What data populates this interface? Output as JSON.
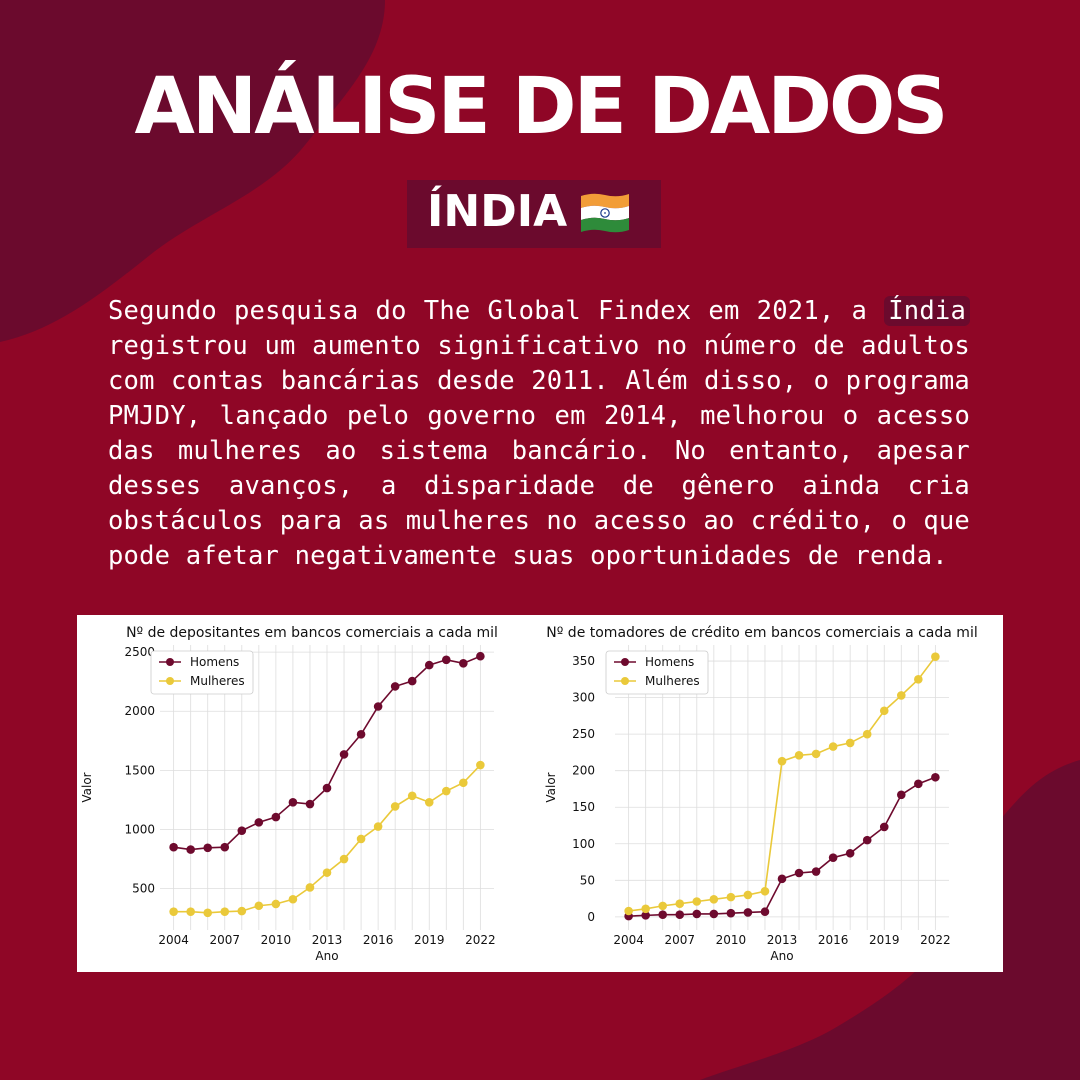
{
  "header": {
    "title": "ANÁLISE DE DADOS",
    "country": "ÍNDIA"
  },
  "body_text": {
    "before": "Segundo pesquisa do The Global Findex em 2021, a ",
    "highlight": "Índia",
    "after": " registrou um aumento significativo no número de adultos com contas bancárias desde 2011. Além disso, o programa PMJDY, lançado pelo governo em 2014, melhorou o acesso das mulheres ao sistema bancário. No entanto, apesar desses avanços, a disparidade de gênero ainda cria obstáculos para as mulheres no acesso ao crédito, o que pode afetar negativamente suas oportunidades de renda."
  },
  "colors": {
    "background": "#8f0626",
    "dark": "#6b0a2d",
    "homens": "#6e0a2e",
    "mulheres": "#eac93a"
  },
  "chart_data": [
    {
      "type": "line",
      "title": "Nº de depositantes em bancos comerciais a cada mil",
      "xlabel": "Ano",
      "ylabel": "Valor",
      "x": [
        2004,
        2005,
        2006,
        2007,
        2008,
        2009,
        2010,
        2011,
        2012,
        2013,
        2014,
        2015,
        2016,
        2017,
        2018,
        2019,
        2020,
        2021,
        2022
      ],
      "xticks": [
        2004,
        2007,
        2010,
        2013,
        2016,
        2019,
        2022
      ],
      "yticks": [
        500,
        1000,
        1500,
        2000,
        2500
      ],
      "ylim": [
        150,
        2560
      ],
      "xlim": [
        2003.2,
        2022.8
      ],
      "legend": "top-left",
      "grid": true,
      "series": [
        {
          "name": "Homens",
          "values": [
            850,
            830,
            845,
            850,
            990,
            1060,
            1105,
            1230,
            1215,
            1350,
            1635,
            1805,
            2040,
            2210,
            2255,
            2390,
            2435,
            2405,
            2465
          ]
        },
        {
          "name": "Mulheres",
          "values": [
            305,
            305,
            295,
            305,
            310,
            355,
            370,
            410,
            510,
            635,
            750,
            920,
            1025,
            1195,
            1285,
            1230,
            1325,
            1395,
            1545
          ]
        }
      ]
    },
    {
      "type": "line",
      "title": "Nº de tomadores de crédito em bancos comerciais a cada mil",
      "xlabel": "Ano",
      "ylabel": "Valor",
      "x": [
        2004,
        2005,
        2006,
        2007,
        2008,
        2009,
        2010,
        2011,
        2012,
        2013,
        2014,
        2015,
        2016,
        2017,
        2018,
        2019,
        2020,
        2021,
        2022
      ],
      "xticks": [
        2004,
        2007,
        2010,
        2013,
        2016,
        2019,
        2022
      ],
      "yticks": [
        0,
        50,
        100,
        150,
        200,
        250,
        300,
        350
      ],
      "ylim": [
        -18,
        372
      ],
      "xlim": [
        2003.2,
        2022.8
      ],
      "legend": "top-left",
      "grid": true,
      "series": [
        {
          "name": "Homens",
          "values": [
            1,
            2,
            3,
            3,
            4,
            4,
            5,
            6,
            7,
            52,
            60,
            62,
            81,
            87,
            105,
            123,
            167,
            182,
            191
          ]
        },
        {
          "name": "Mulheres",
          "values": [
            8,
            11,
            15,
            18,
            21,
            24,
            27,
            30,
            35,
            213,
            221,
            223,
            233,
            238,
            250,
            282,
            303,
            325,
            356
          ]
        }
      ]
    }
  ]
}
